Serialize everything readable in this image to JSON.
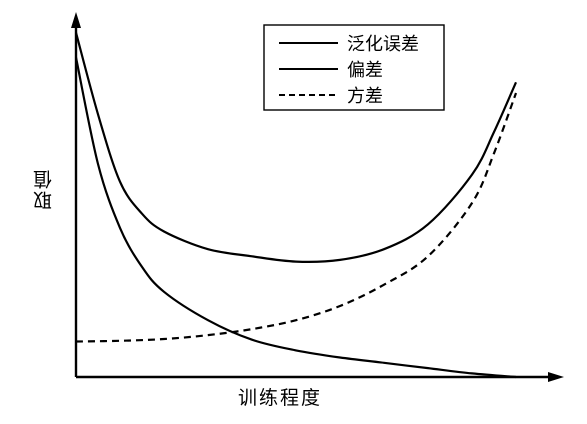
{
  "chart_data": {
    "type": "line",
    "xlabel": "训练程度",
    "ylabel": "取值",
    "legend": "top-right",
    "xlim": [
      0,
      10
    ],
    "ylim": [
      0,
      10
    ],
    "series": [
      {
        "name": "泛化误差",
        "style": "solid",
        "x": [
          0,
          0.5,
          1,
          1.5,
          2,
          3,
          4,
          5,
          6,
          7,
          8,
          9,
          9.5,
          10
        ],
        "y": [
          9.7,
          7.4,
          5.5,
          4.6,
          4.1,
          3.6,
          3.4,
          3.25,
          3.3,
          3.6,
          4.3,
          5.7,
          6.9,
          8.3
        ]
      },
      {
        "name": "偏差",
        "style": "solid",
        "x": [
          0,
          0.5,
          1,
          1.5,
          2,
          3,
          4,
          5,
          6,
          7,
          8,
          9,
          10
        ],
        "y": [
          9.0,
          6.0,
          4.2,
          3.1,
          2.4,
          1.6,
          1.05,
          0.75,
          0.55,
          0.4,
          0.25,
          0.1,
          0.0
        ]
      },
      {
        "name": "方差",
        "style": "dashed",
        "x": [
          0,
          1,
          2,
          3,
          4,
          5,
          6,
          7,
          8,
          9,
          9.5,
          10
        ],
        "y": [
          1.0,
          1.02,
          1.07,
          1.18,
          1.35,
          1.6,
          2.0,
          2.6,
          3.4,
          4.9,
          6.3,
          8.0
        ]
      }
    ]
  }
}
